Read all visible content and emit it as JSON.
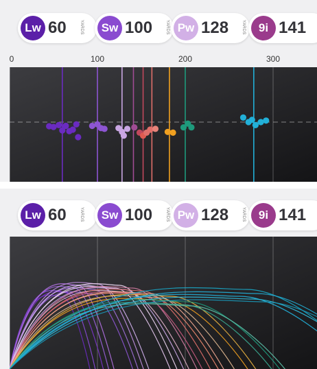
{
  "clubs": [
    {
      "code": "Lw",
      "distance": "60",
      "unit": "YARDS",
      "color": "#5b1fa8"
    },
    {
      "code": "Sw",
      "distance": "100",
      "unit": "YARDS",
      "color": "#8a4bd0"
    },
    {
      "code": "Pw",
      "distance": "128",
      "unit": "YARDS",
      "color": "#d2b0e6"
    },
    {
      "code": "9i",
      "distance": "141",
      "unit": "YARDS",
      "color": "#9a3b8c"
    }
  ],
  "scale": {
    "min": 0,
    "max": 350,
    "ticks": [
      {
        "value": 0,
        "label": "0"
      },
      {
        "value": 100,
        "label": "100"
      },
      {
        "value": 200,
        "label": "200"
      },
      {
        "value": 300,
        "label": "300"
      }
    ]
  },
  "dispersion": {
    "club_lines": [
      {
        "distance": 60,
        "color": "#6a2bc0"
      },
      {
        "distance": 100,
        "color": "#8d55d2"
      },
      {
        "distance": 128,
        "color": "#c9a6e3"
      },
      {
        "distance": 141,
        "color": "#a04c94"
      },
      {
        "distance": 152,
        "color": "#c0485c"
      },
      {
        "distance": 162,
        "color": "#e06f6a"
      },
      {
        "distance": 182,
        "color": "#f0a020"
      },
      {
        "distance": 200,
        "color": "#1e9a7c"
      },
      {
        "distance": 278,
        "color": "#22b0d8"
      }
    ],
    "shots": [
      {
        "x": 45,
        "y": 0.55,
        "color": "#6a2bc0"
      },
      {
        "x": 50,
        "y": 0.65,
        "color": "#6a2bc0"
      },
      {
        "x": 56,
        "y": 0.4,
        "color": "#6a2bc0"
      },
      {
        "x": 60,
        "y": 1.1,
        "color": "#6a2bc0"
      },
      {
        "x": 64,
        "y": 0.5,
        "color": "#6a2bc0"
      },
      {
        "x": 68,
        "y": 1.2,
        "color": "#6a2bc0"
      },
      {
        "x": 72,
        "y": 1.0,
        "color": "#6a2bc0"
      },
      {
        "x": 76,
        "y": 0.3,
        "color": "#6a2bc0"
      },
      {
        "x": 78,
        "y": 2.0,
        "color": "#6a2bc0"
      },
      {
        "x": 94,
        "y": 0.5,
        "color": "#8d55d2"
      },
      {
        "x": 100,
        "y": 0.3,
        "color": "#8d55d2"
      },
      {
        "x": 104,
        "y": 0.8,
        "color": "#8d55d2"
      },
      {
        "x": 108,
        "y": 0.9,
        "color": "#8d55d2"
      },
      {
        "x": 124,
        "y": 0.8,
        "color": "#c9a6e3"
      },
      {
        "x": 128,
        "y": 1.3,
        "color": "#c9a6e3"
      },
      {
        "x": 130,
        "y": 1.8,
        "color": "#c9a6e3"
      },
      {
        "x": 134,
        "y": 0.9,
        "color": "#c9a6e3"
      },
      {
        "x": 142,
        "y": 0.7,
        "color": "#a04c94"
      },
      {
        "x": 148,
        "y": 1.4,
        "color": "#c0485c"
      },
      {
        "x": 152,
        "y": 1.8,
        "color": "#e05a50"
      },
      {
        "x": 156,
        "y": 1.4,
        "color": "#e06f6a"
      },
      {
        "x": 160,
        "y": 1.0,
        "color": "#e06f6a"
      },
      {
        "x": 166,
        "y": 0.9,
        "color": "#e8837a"
      },
      {
        "x": 180,
        "y": 1.3,
        "color": "#f0a020"
      },
      {
        "x": 186,
        "y": 1.4,
        "color": "#f0a020"
      },
      {
        "x": 198,
        "y": 0.7,
        "color": "#1e9a7c"
      },
      {
        "x": 203,
        "y": 0.2,
        "color": "#1e9a7c"
      },
      {
        "x": 207,
        "y": 0.7,
        "color": "#1e9a7c"
      },
      {
        "x": 266,
        "y": -0.6,
        "color": "#22b0d8"
      },
      {
        "x": 272,
        "y": 0.0,
        "color": "#22b0d8"
      },
      {
        "x": 276,
        "y": -0.3,
        "color": "#22b0d8"
      },
      {
        "x": 280,
        "y": 0.4,
        "color": "#22b0d8"
      },
      {
        "x": 286,
        "y": 0.0,
        "color": "#22b0d8"
      },
      {
        "x": 292,
        "y": -0.2,
        "color": "#22b0d8"
      }
    ]
  },
  "trajectories": {
    "paths": [
      {
        "carry": 60,
        "apex": 105,
        "color": "#6a2bc0"
      },
      {
        "carry": 64,
        "apex": 112,
        "color": "#8a4ad8"
      },
      {
        "carry": 70,
        "apex": 110,
        "color": "#7a34c8"
      },
      {
        "carry": 74,
        "apex": 118,
        "color": "#9b62dc"
      },
      {
        "carry": 78,
        "apex": 122,
        "color": "#b070e0"
      },
      {
        "carry": 92,
        "apex": 110,
        "color": "#8d55d2"
      },
      {
        "carry": 96,
        "apex": 116,
        "color": "#a070d8"
      },
      {
        "carry": 100,
        "apex": 124,
        "color": "#c090e0"
      },
      {
        "carry": 104,
        "apex": 120,
        "color": "#d0b0ec"
      },
      {
        "carry": 120,
        "apex": 118,
        "color": "#e6c8f0"
      },
      {
        "carry": 125,
        "apex": 122,
        "color": "#f0d8f4"
      },
      {
        "carry": 130,
        "apex": 116,
        "color": "#c9a6e3"
      },
      {
        "carry": 134,
        "apex": 112,
        "color": "#e0b0c8"
      },
      {
        "carry": 140,
        "apex": 118,
        "color": "#d07aa0"
      },
      {
        "carry": 144,
        "apex": 110,
        "color": "#c85a80"
      },
      {
        "carry": 150,
        "apex": 114,
        "color": "#e06f6a"
      },
      {
        "carry": 156,
        "apex": 108,
        "color": "#f08a70"
      },
      {
        "carry": 160,
        "apex": 110,
        "color": "#f2a890"
      },
      {
        "carry": 168,
        "apex": 104,
        "color": "#e0b890"
      },
      {
        "carry": 178,
        "apex": 100,
        "color": "#f0a020"
      },
      {
        "carry": 184,
        "apex": 106,
        "color": "#e8b040"
      },
      {
        "carry": 196,
        "apex": 94,
        "color": "#3aa890"
      },
      {
        "carry": 202,
        "apex": 98,
        "color": "#1e9a7c"
      },
      {
        "carry": 206,
        "apex": 92,
        "color": "#5cc0a8"
      },
      {
        "carry": 262,
        "apex": 106,
        "color": "#22b0d8"
      },
      {
        "carry": 270,
        "apex": 116,
        "color": "#1aa8c8"
      },
      {
        "carry": 276,
        "apex": 102,
        "color": "#30c0e0"
      },
      {
        "carry": 282,
        "apex": 110,
        "color": "#22b0d8"
      },
      {
        "carry": 288,
        "apex": 98,
        "color": "#1a98b8"
      }
    ]
  }
}
